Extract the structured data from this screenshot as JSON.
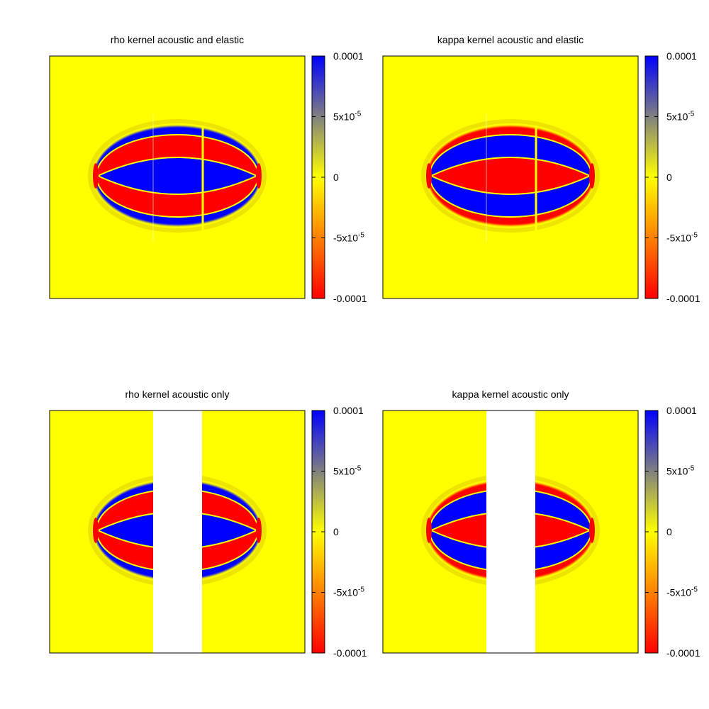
{
  "chart_data": [
    {
      "type": "heatmap",
      "title": "rho kernel acoustic and elastic",
      "colorbar": {
        "min": -0.0001,
        "max": 0.0001,
        "ticks": [
          "0.0001",
          "5x10-5",
          "0",
          "-5x10-5",
          "-0.0001"
        ]
      },
      "pattern": "rho",
      "blank_band": false
    },
    {
      "type": "heatmap",
      "title": "kappa kernel acoustic and elastic",
      "colorbar": {
        "min": -0.0001,
        "max": 0.0001,
        "ticks": [
          "0.0001",
          "5x10-5",
          "0",
          "-5x10-5",
          "-0.0001"
        ]
      },
      "pattern": "kappa",
      "blank_band": false
    },
    {
      "type": "heatmap",
      "title": "rho kernel acoustic only",
      "colorbar": {
        "min": -0.0001,
        "max": 0.0001,
        "ticks": [
          "0.0001",
          "5x10-5",
          "0",
          "-5x10-5",
          "-0.0001"
        ]
      },
      "pattern": "rho",
      "blank_band": true
    },
    {
      "type": "heatmap",
      "title": "kappa kernel acoustic only",
      "colorbar": {
        "min": -0.0001,
        "max": 0.0001,
        "ticks": [
          "0.0001",
          "5x10-5",
          "0",
          "-5x10-5",
          "-0.0001"
        ]
      },
      "pattern": "kappa",
      "blank_band": true
    }
  ],
  "colors": {
    "positive": "#0000ff",
    "mid": "#808080",
    "zero": "#ffff00",
    "half_negative": "#ff8000",
    "negative": "#ff0000",
    "blank": "#ffffff",
    "frame": "#000000"
  }
}
